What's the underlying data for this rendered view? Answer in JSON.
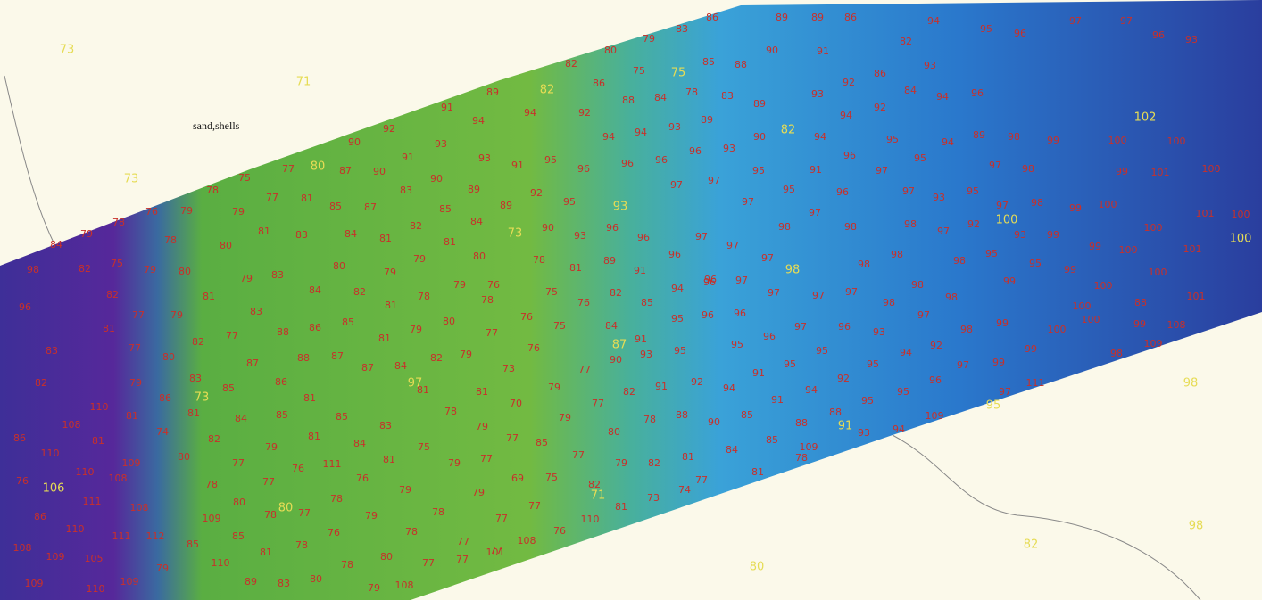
{
  "note": "sand,shells",
  "chart_soundings": [
    73,
    71,
    73,
    98,
    98,
    82,
    80,
    82,
    75,
    80,
    82,
    93,
    73,
    100,
    100,
    102,
    98,
    87,
    97,
    73,
    91,
    95,
    71,
    80,
    106
  ],
  "soundings": [
    86,
    89,
    89,
    86,
    94,
    95,
    96,
    97,
    97,
    96,
    93,
    83,
    79,
    80,
    82,
    75,
    85,
    88,
    90,
    91,
    82,
    93,
    86,
    84,
    86,
    88,
    84,
    78,
    83,
    89,
    93,
    92,
    94,
    96,
    89,
    91,
    94,
    94,
    92,
    94,
    94,
    93,
    89,
    90,
    94,
    94,
    92,
    95,
    94,
    89,
    98,
    99,
    100,
    100,
    92,
    90,
    93,
    93,
    91,
    95,
    96,
    96,
    96,
    96,
    93,
    95,
    91,
    96,
    97,
    95,
    97,
    98,
    99,
    101,
    100,
    91,
    87,
    90,
    77,
    75,
    78,
    77,
    81,
    85,
    87,
    83,
    90,
    89,
    89,
    92,
    95,
    97,
    97,
    97,
    95,
    97,
    96,
    97,
    93,
    95,
    97,
    98,
    99,
    100,
    101,
    100,
    76,
    79,
    79,
    78,
    79,
    84,
    78,
    80,
    81,
    83,
    84,
    81,
    82,
    85,
    84,
    81,
    80,
    79,
    90,
    93,
    96,
    96,
    97,
    97,
    98,
    98,
    98,
    97,
    92,
    93,
    99,
    99,
    100,
    100,
    101,
    98,
    82,
    75,
    79,
    80,
    79,
    83,
    80,
    79,
    78,
    81,
    89,
    91,
    96,
    96,
    97,
    97,
    98,
    98,
    98,
    95,
    95,
    99,
    100,
    101,
    96,
    82,
    81,
    84,
    82,
    81,
    78,
    79,
    76,
    75,
    78,
    76,
    82,
    85,
    94,
    96,
    97,
    97,
    97,
    98,
    98,
    98,
    99,
    100,
    100,
    88,
    81,
    77,
    79,
    83,
    88,
    86,
    85,
    81,
    79,
    80,
    77,
    76,
    75,
    84,
    91,
    95,
    96,
    96,
    96,
    97,
    96,
    93,
    97,
    98,
    99,
    100,
    100,
    99,
    108,
    83,
    77,
    80,
    82,
    77,
    87,
    88,
    87,
    87,
    84,
    82,
    79,
    76,
    90,
    93,
    95,
    95,
    95,
    95,
    95,
    94,
    92,
    97,
    99,
    99,
    98,
    109,
    82,
    79,
    83,
    85,
    86,
    81,
    73,
    77,
    82,
    91,
    92,
    94,
    91,
    91,
    94,
    92,
    95,
    95,
    96,
    97,
    111,
    110,
    81,
    86,
    81,
    81,
    79,
    70,
    77,
    81,
    84,
    85,
    85,
    83,
    78,
    79,
    79,
    80,
    78,
    88,
    90,
    85,
    88,
    88,
    93,
    94,
    109,
    108,
    86,
    74,
    82,
    81,
    84,
    75,
    77,
    85,
    85,
    84,
    109,
    110,
    81,
    80,
    79,
    81,
    79,
    77,
    77,
    79,
    82,
    81,
    78,
    77,
    76,
    111,
    109,
    110,
    108,
    76,
    78,
    77,
    76,
    79,
    79,
    69,
    75,
    82,
    81,
    77,
    74,
    73,
    81,
    80,
    78,
    77,
    78,
    79,
    78,
    77,
    77,
    76,
    110,
    111,
    108,
    86,
    109,
    110,
    111,
    112,
    85,
    85,
    81,
    78,
    76,
    78,
    77,
    77,
    108,
    108,
    109,
    105,
    110,
    79,
    80,
    78,
    77,
    77,
    101,
    89,
    83,
    80,
    79,
    108,
    109,
    109,
    110
  ]
}
